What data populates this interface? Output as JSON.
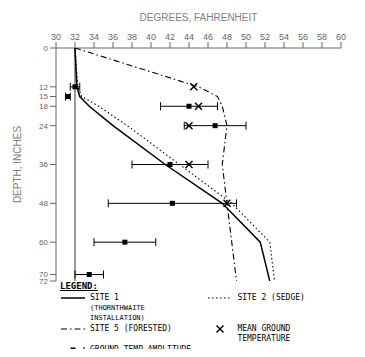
{
  "chart_data": {
    "type": "line",
    "xlabel": "DEGREES, FAHRENHEIT",
    "ylabel": "DEPTH, INCHES",
    "xlim": [
      30,
      60
    ],
    "ylim": [
      72,
      0
    ],
    "xticks": [
      30,
      32,
      34,
      36,
      38,
      40,
      42,
      44,
      46,
      48,
      50,
      52,
      54,
      56,
      58,
      60
    ],
    "yticks": [
      0,
      12,
      15,
      18,
      24,
      36,
      48,
      60,
      70,
      72
    ],
    "grid": false,
    "legend": "bottom",
    "legend_title": "LEGEND:",
    "reference_lines": [
      {
        "x": 32
      }
    ],
    "series": [
      {
        "name": "SITE 1",
        "note": "(THORNTHWAITE INSTALLATION)",
        "type": "line",
        "line_style": "solid",
        "color": "#000000",
        "x": [
          32.0,
          32.2,
          32.5,
          33.5,
          36.0,
          41.5,
          47.5,
          51.5,
          52.5
        ],
        "values": [
          0,
          12,
          15,
          18,
          24,
          36,
          48,
          60,
          72
        ]
      },
      {
        "name": "SITE 2 (SEDGE)",
        "type": "line",
        "line_style": "dotted",
        "color": "#000000",
        "x": [
          32.0,
          32.3,
          32.7,
          34.5,
          37.5,
          43.0,
          48.5,
          52.5,
          53.0
        ],
        "values": [
          0,
          12,
          15,
          18,
          24,
          36,
          48,
          60,
          72
        ]
      },
      {
        "name": "SITE 5 (FORESTED)",
        "type": "line",
        "line_style": "dashdot",
        "color": "#000000",
        "x": [
          32.0,
          45.0,
          47.0,
          47.5,
          48.0,
          47.5,
          48.0,
          48.5,
          49.0
        ],
        "values": [
          0,
          12,
          15,
          18,
          24,
          36,
          48,
          60,
          72
        ]
      },
      {
        "name": "MEAN GROUND TEMPERATURE",
        "type": "scatter",
        "marker": "x",
        "color": "#000000",
        "x": [
          44.5,
          45.0,
          44.0,
          44.0,
          48.0
        ],
        "values": [
          12,
          18,
          24,
          36,
          48
        ]
      },
      {
        "name": "GROUND TEMP AMPLITUDE",
        "type": "errorbar",
        "marker": "square",
        "color": "#000000",
        "x": [
          32.0,
          31.25,
          44.0,
          46.75,
          42.0,
          42.25,
          37.25,
          33.5
        ],
        "x_error": [
          0.5,
          0.25,
          3.0,
          3.25,
          4.0,
          6.75,
          3.25,
          1.5
        ],
        "values": [
          12,
          15,
          18,
          24,
          36,
          48,
          60,
          70
        ]
      }
    ]
  }
}
